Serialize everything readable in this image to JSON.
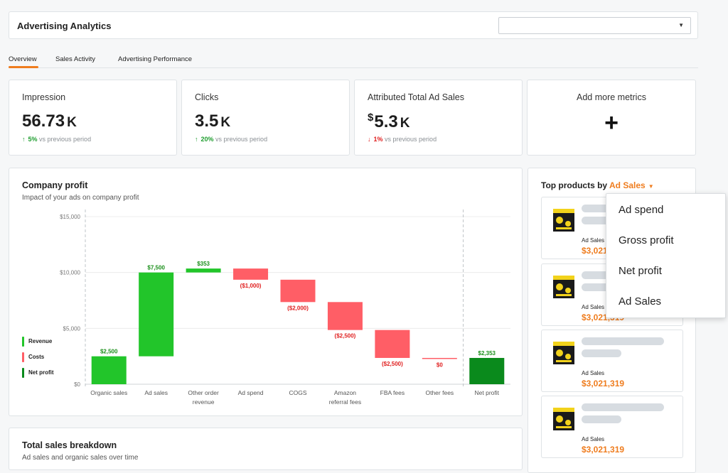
{
  "header": {
    "title": "Advertising Analytics",
    "select_value": ""
  },
  "tabs": [
    {
      "label": "Overview",
      "active": true
    },
    {
      "label": "Sales Activity",
      "active": false
    },
    {
      "label": "Advertising Performance",
      "active": false
    }
  ],
  "metrics": [
    {
      "label": "Impression",
      "currency": "",
      "value": "56.73",
      "unit": "K",
      "direction": "up",
      "change": "5%",
      "suffix": "vs previous period"
    },
    {
      "label": "Clicks",
      "currency": "",
      "value": "3.5",
      "unit": "K",
      "direction": "up",
      "change": "20%",
      "suffix": "vs previous period"
    },
    {
      "label": "Attributed Total Ad Sales",
      "currency": "$",
      "value": "5.3",
      "unit": "K",
      "direction": "down",
      "change": "1%",
      "suffix": "vs previous period"
    }
  ],
  "add_metrics": {
    "label": "Add more metrics",
    "plus": "+"
  },
  "profit": {
    "title": "Company profit",
    "subtitle": "Impact of your ads on company profit",
    "legend": [
      {
        "label": "Revenue",
        "color": "#22c52a"
      },
      {
        "label": "Costs",
        "color": "#ff5e66"
      },
      {
        "label": "Net profit",
        "color": "#0a8a1c"
      }
    ]
  },
  "chart_data": {
    "type": "bar",
    "subtype": "waterfall",
    "categories": [
      "Organic sales",
      "Ad sales",
      "Other order revenue",
      "Ad spend",
      "COGS",
      "Amazon referral fees",
      "FBA fees",
      "Other fees",
      "Net profit"
    ],
    "tick_labels": [
      [
        "Organic sales"
      ],
      [
        "Ad sales"
      ],
      [
        "Other order",
        "revenue"
      ],
      [
        "Ad spend"
      ],
      [
        "COGS"
      ],
      [
        "Amazon",
        "referral fees"
      ],
      [
        "FBA fees"
      ],
      [
        "Other fees"
      ],
      [
        "Net profit"
      ]
    ],
    "values": [
      2500,
      7500,
      353,
      -1000,
      -2000,
      -2500,
      -2500,
      0,
      2353
    ],
    "kinds": [
      "revenue",
      "revenue",
      "revenue",
      "cost",
      "cost",
      "cost",
      "cost",
      "cost",
      "net"
    ],
    "data_labels": [
      "$2,500",
      "$7,500",
      "$353",
      "($1,000)",
      "($2,000)",
      "($2,500)",
      "($2,500)",
      "$0",
      "$2,353"
    ],
    "ylim": [
      0,
      15000
    ],
    "yticks": [
      0,
      5000,
      10000,
      15000
    ],
    "ytick_labels": [
      "$0",
      "$5,000",
      "$10,000",
      "$15,000"
    ],
    "colors": {
      "revenue": "#22c52a",
      "cost": "#ff5e66",
      "net": "#0a8a1c"
    },
    "grid": true
  },
  "breakdown": {
    "title": "Total sales breakdown",
    "subtitle": "Ad sales and organic sales over time"
  },
  "top_products": {
    "title_prefix": "Top products by",
    "metric": "Ad Sales",
    "products": [
      {
        "label": "Ad Sales",
        "value": "$3,021,319"
      },
      {
        "label": "Ad Sales",
        "value": "$3,021,319"
      },
      {
        "label": "Ad Sales",
        "value": "$3,021,319"
      },
      {
        "label": "Ad Sales",
        "value": "$3,021,319"
      }
    ]
  },
  "dropdown": {
    "options": [
      "Ad spend",
      "Gross profit",
      "Net profit",
      "Ad Sales"
    ]
  }
}
